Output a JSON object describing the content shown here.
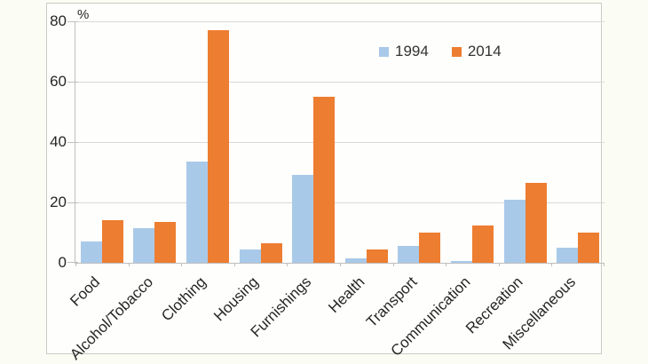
{
  "chart_data": {
    "type": "bar",
    "title": "",
    "xlabel": "",
    "ylabel": "%",
    "ylim": [
      0,
      80
    ],
    "yticks": [
      0,
      20,
      40,
      60,
      80
    ],
    "grid": true,
    "legend_position": "top-center-right",
    "categories": [
      "Food",
      "Alcohol/Tobacco",
      "Clothing",
      "Housing",
      "Furnishings",
      "Health",
      "Transport",
      "Communication",
      "Recreation",
      "Miscellaneous"
    ],
    "series": [
      {
        "name": "1994",
        "color": "#a9c9e9",
        "values": [
          7,
          11.5,
          33.5,
          4.5,
          29,
          1.5,
          5.5,
          0.5,
          21,
          5
        ]
      },
      {
        "name": "2014",
        "color": "#ed7d31",
        "values": [
          14,
          13.5,
          77,
          6.5,
          55,
          4.5,
          10,
          12.5,
          26.5,
          10
        ]
      }
    ],
    "colors": {
      "gridline": "#d9d9d9",
      "axis": "#bfbfbf",
      "text": "#262626",
      "chart_border": "#c9ccc4",
      "background": "#fbfdf5"
    }
  }
}
